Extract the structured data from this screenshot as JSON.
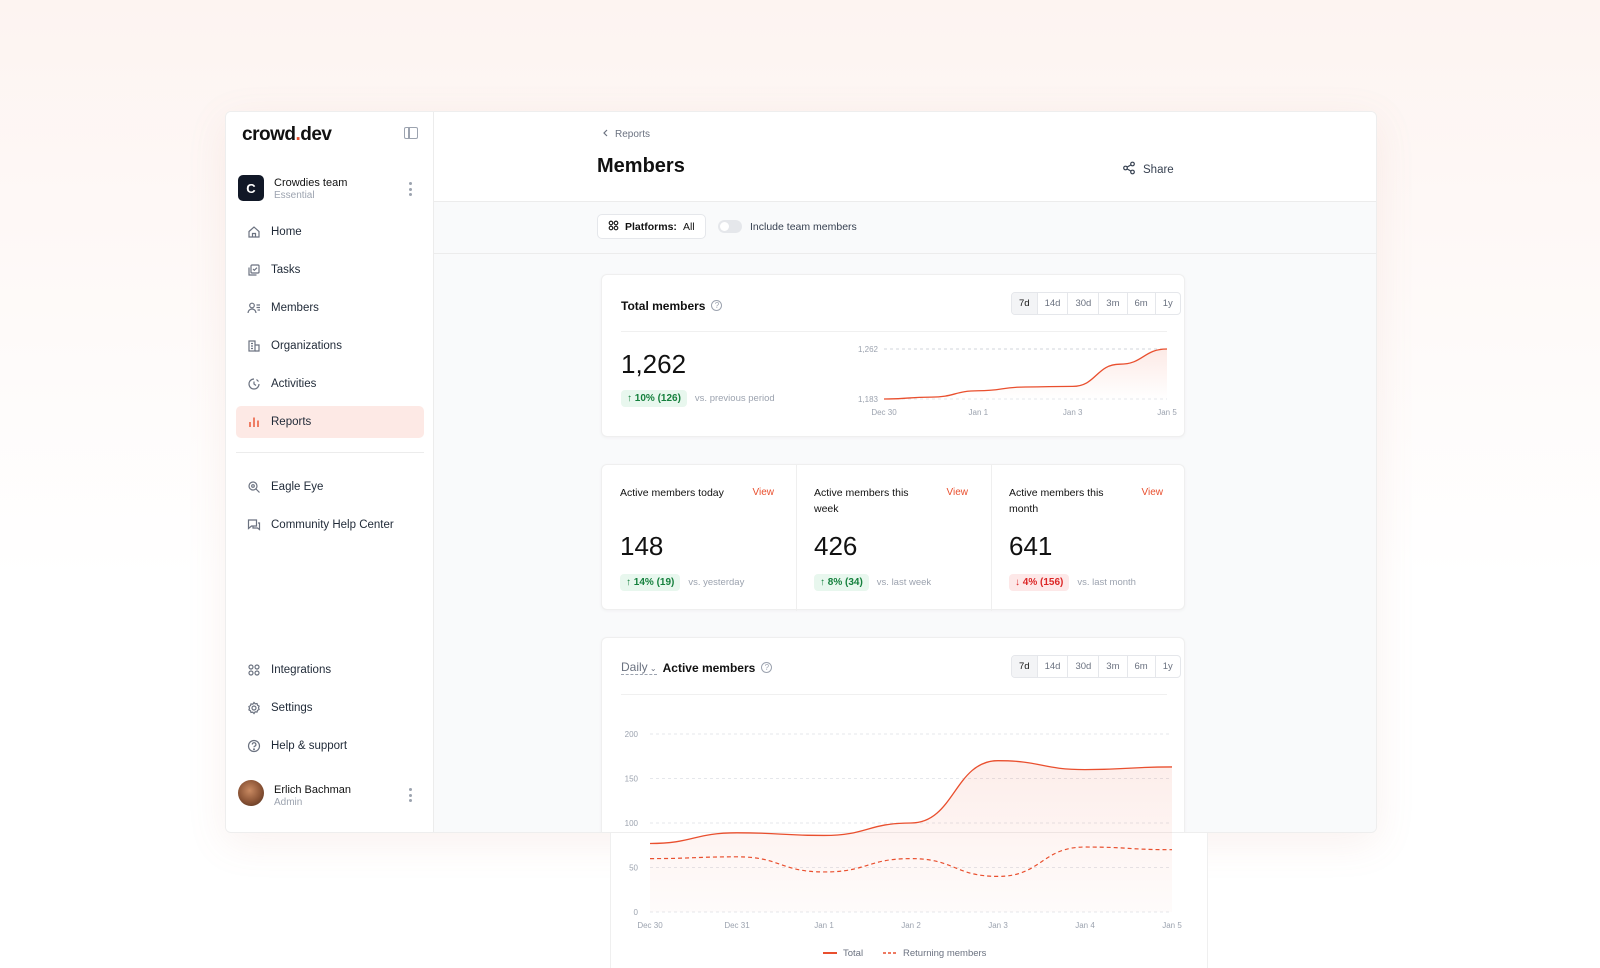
{
  "brand": {
    "logo_main": "crowd",
    "logo_mid": ".",
    "logo_accent": "dev"
  },
  "team": {
    "initial": "C",
    "name": "Crowdies team",
    "plan": "Essential"
  },
  "nav": {
    "items": [
      {
        "label": "Home",
        "icon": "home-icon"
      },
      {
        "label": "Tasks",
        "icon": "tasks-icon"
      },
      {
        "label": "Members",
        "icon": "members-icon"
      },
      {
        "label": "Organizations",
        "icon": "organizations-icon"
      },
      {
        "label": "Activities",
        "icon": "activities-icon"
      },
      {
        "label": "Reports",
        "icon": "reports-icon",
        "active": true
      }
    ],
    "secondary": [
      {
        "label": "Eagle Eye",
        "icon": "eagle-eye-icon"
      },
      {
        "label": "Community Help Center",
        "icon": "help-center-icon"
      }
    ],
    "bottom": [
      {
        "label": "Integrations",
        "icon": "integrations-icon"
      },
      {
        "label": "Settings",
        "icon": "settings-icon"
      },
      {
        "label": "Help & support",
        "icon": "help-icon"
      }
    ]
  },
  "user": {
    "name": "Erlich Bachman",
    "role": "Admin"
  },
  "header": {
    "breadcrumb": "Reports",
    "title": "Members",
    "share_label": "Share"
  },
  "filters": {
    "platforms_label": "Platforms:",
    "platforms_value": "All",
    "toggle_label": "Include team members"
  },
  "ranges": [
    "7d",
    "14d",
    "30d",
    "3m",
    "6m",
    "1y"
  ],
  "total_members": {
    "title": "Total members",
    "value": "1,262",
    "delta": "10% (126)",
    "vs": "vs. previous period"
  },
  "stats": [
    {
      "label": "Active members today",
      "view": "View",
      "value": "148",
      "delta": "14% (19)",
      "direction": "up",
      "vs": "vs. yesterday"
    },
    {
      "label": "Active members this week",
      "view": "View",
      "value": "426",
      "delta": "8% (34)",
      "direction": "up",
      "vs": "vs. last week"
    },
    {
      "label": "Active members this month",
      "view": "View",
      "value": "641",
      "delta": "4% (156)",
      "direction": "down",
      "vs": "vs. last month"
    }
  ],
  "active_chart": {
    "granularity": "Daily",
    "title": "Active members"
  },
  "colors": {
    "accent": "#e94f2e",
    "up": "#15803d",
    "down": "#dc2626"
  },
  "chart_data": [
    {
      "type": "line",
      "title": "Total members",
      "x": [
        "Dec 30",
        "Dec 31",
        "Jan 1",
        "Jan 2",
        "Jan 3",
        "Jan 4",
        "Jan 5"
      ],
      "x_tick_labels": [
        "Dec 30",
        "Jan 1",
        "Jan 3",
        "Jan 5"
      ],
      "series": [
        {
          "values": [
            1183,
            1186,
            1196,
            1202,
            1203,
            1238,
            1262
          ]
        }
      ],
      "ylim": [
        1183,
        1262
      ],
      "y_tick_labels": [
        "1,262",
        "1,183"
      ],
      "grid": true
    },
    {
      "type": "area",
      "title": "Active members",
      "x": [
        "Dec 30",
        "Dec 31",
        "Jan 1",
        "Jan 2",
        "Jan 3",
        "Jan 4",
        "Jan 5"
      ],
      "series": [
        {
          "name": "Total",
          "values": [
            77,
            89,
            86,
            100,
            170,
            160,
            163
          ]
        },
        {
          "name": "Returning members",
          "values": [
            60,
            62,
            45,
            60,
            40,
            73,
            70
          ]
        }
      ],
      "ylim": [
        0,
        200
      ],
      "y_ticks": [
        0,
        50,
        100,
        150,
        200
      ],
      "legend": "bottom",
      "grid": true
    }
  ]
}
